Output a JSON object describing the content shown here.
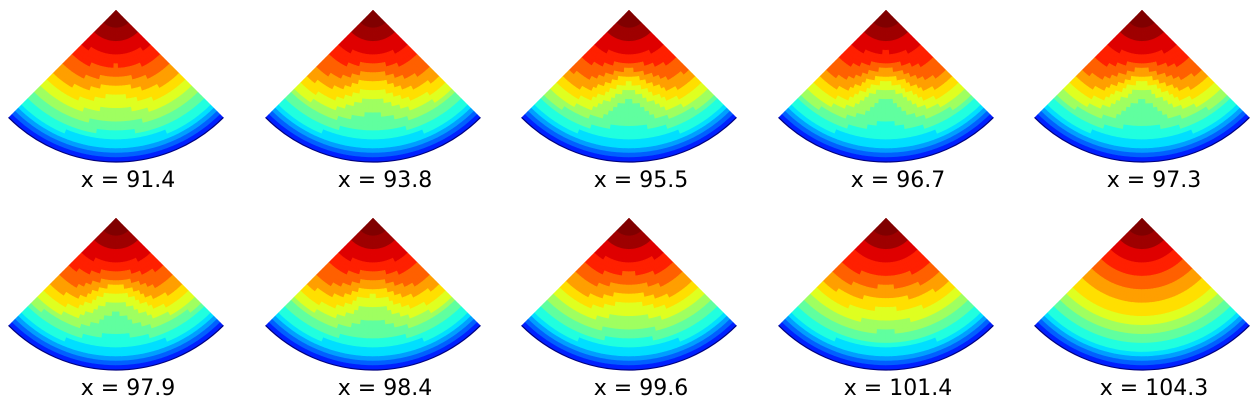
{
  "chart_data": {
    "type": "heatmap",
    "colormap": "jet",
    "grid": false,
    "panels": [
      {
        "label": "x = 91.4",
        "x": 91.4,
        "bump": 0.18
      },
      {
        "label": "x = 93.8",
        "x": 93.8,
        "bump": 0.32
      },
      {
        "label": "x = 95.5",
        "x": 95.5,
        "bump": 0.45
      },
      {
        "label": "x = 96.7",
        "x": 96.7,
        "bump": 0.48
      },
      {
        "label": "x = 97.3",
        "x": 97.3,
        "bump": 0.46
      },
      {
        "label": "x = 97.9",
        "x": 97.9,
        "bump": 0.4
      },
      {
        "label": "x = 98.4",
        "x": 98.4,
        "bump": 0.33
      },
      {
        "label": "x = 99.6",
        "x": 99.6,
        "bump": 0.2
      },
      {
        "label": "x = 101.4",
        "x": 101.4,
        "bump": 0.1
      },
      {
        "label": "x = 104.3",
        "x": 104.3,
        "bump": 0.0
      }
    ]
  }
}
